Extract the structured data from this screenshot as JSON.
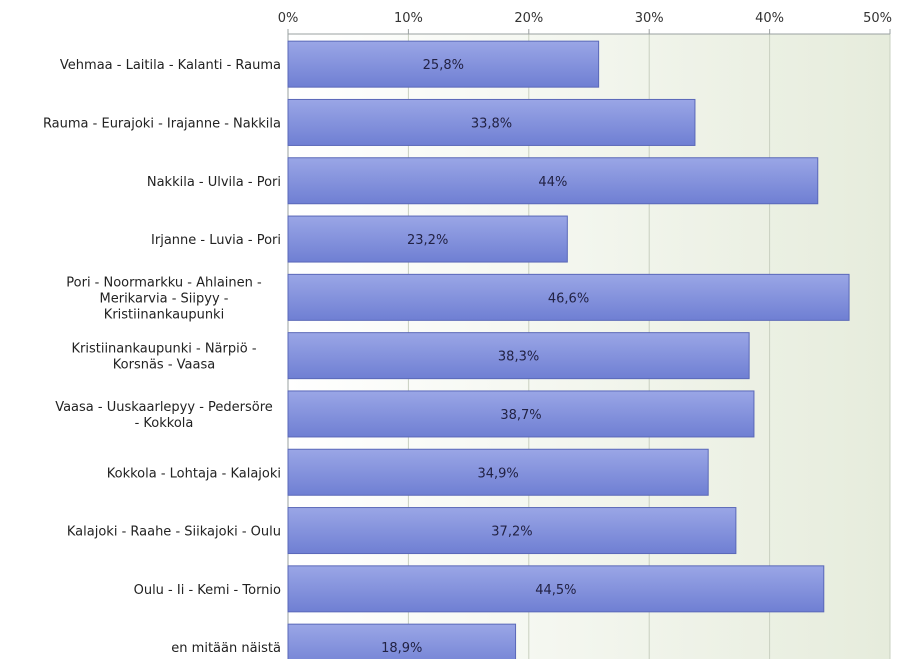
{
  "chart_data": {
    "type": "bar",
    "orientation": "horizontal",
    "categories": [
      "Vehmaa - Laitila - Kalanti - Rauma",
      "Rauma - Eurajoki - Irajanne - Nakkila",
      "Nakkila - Ulvila - Pori",
      "Irjanne - Luvia - Pori",
      "Pori - Noormarkku - Ahlainen - Merikarvia - Siipyy - Kristiinankaupunki",
      "Kristiinankaupunki - Närpiö - Korsnäs - Vaasa",
      "Vaasa - Uuskaarlepyy - Pedersöre - Kokkola",
      "Kokkola - Lohtaja - Kalajoki",
      "Kalajoki - Raahe - Siikajoki - Oulu",
      "Oulu - Ii - Kemi - Tornio",
      "en mitään näistä"
    ],
    "category_lines": [
      [
        "Vehmaa - Laitila - Kalanti - Rauma"
      ],
      [
        "Rauma - Eurajoki - Irajanne - Nakkila"
      ],
      [
        "Nakkila - Ulvila - Pori"
      ],
      [
        "Irjanne - Luvia - Pori"
      ],
      [
        "Pori - Noormarkku - Ahlainen -",
        "Merikarvia - Siipyy -",
        "Kristiinankaupunki"
      ],
      [
        "Kristiinankaupunki - Närpiö -",
        "Korsnäs - Vaasa"
      ],
      [
        "Vaasa - Uuskaarlepyy - Pedersöre",
        "- Kokkola"
      ],
      [
        "Kokkola - Lohtaja - Kalajoki"
      ],
      [
        "Kalajoki - Raahe - Siikajoki - Oulu"
      ],
      [
        "Oulu - Ii - Kemi - Tornio"
      ],
      [
        "en mitään näistä"
      ]
    ],
    "values": [
      25.8,
      33.8,
      44,
      23.2,
      46.6,
      38.3,
      38.7,
      34.9,
      37.2,
      44.5,
      18.9
    ],
    "value_labels": [
      "25,8%",
      "33,8%",
      "44%",
      "23,2%",
      "46,6%",
      "38,3%",
      "38,7%",
      "34,9%",
      "37,2%",
      "44,5%",
      "18,9%"
    ],
    "xlim": [
      0,
      50
    ],
    "ticks": [
      0,
      10,
      20,
      30,
      40,
      50
    ],
    "tick_labels": [
      "0%",
      "10%",
      "20%",
      "30%",
      "40%",
      "50%"
    ],
    "axis_position": "top",
    "grid": true,
    "title": "",
    "xlabel": "",
    "ylabel": ""
  },
  "colors": {
    "bar_light": "#9aa6e6",
    "bar_dark": "#6f7fd3",
    "bar_stroke": "#5a68b8",
    "plot_bg_left": "#ffffff",
    "plot_bg_right": "#e6ecdc",
    "grid": "#c8d0c0",
    "axis": "#9aa0a0"
  }
}
